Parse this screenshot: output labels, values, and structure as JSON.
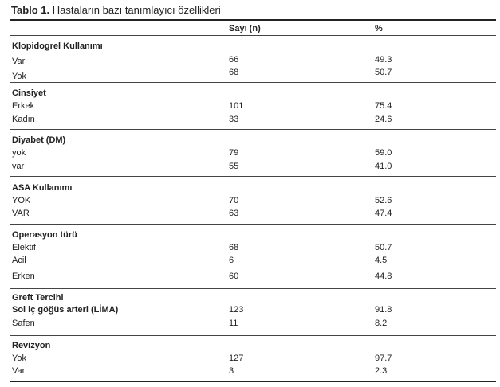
{
  "caption": {
    "label": "Tablo 1.",
    "text": " Hastaların bazı tanımlayıcı özellikleri"
  },
  "table": {
    "header": {
      "col1": "Sayı (n)",
      "col2": "%"
    },
    "groups": [
      {
        "title": "Klopidogrel Kullanımı",
        "rows": [
          {
            "label": "Var",
            "n": "66",
            "pct": "49.3"
          },
          {
            "label": "Yok",
            "n": "68",
            "pct": "50.7"
          }
        ]
      },
      {
        "title": "Cinsiyet",
        "rows": [
          {
            "label": "Erkek",
            "n": "101",
            "pct": "75.4"
          },
          {
            "label": "Kadın",
            "n": "33",
            "pct": "24.6"
          }
        ]
      },
      {
        "title": "Diyabet (DM)",
        "rows": [
          {
            "label": "yok",
            "n": "79",
            "pct": "59.0"
          },
          {
            "label": "var",
            "n": "55",
            "pct": "41.0"
          }
        ]
      },
      {
        "title": "ASA Kullanımı",
        "rows": [
          {
            "label": "YOK",
            "n": "70",
            "pct": "52.6"
          },
          {
            "label": "VAR",
            "n": "63",
            "pct": "47.4"
          }
        ]
      },
      {
        "title": "Operasyon türü",
        "rows": [
          {
            "label": "Elektif",
            "n": "68",
            "pct": "50.7"
          },
          {
            "label": "Acil",
            "n": "6",
            "pct": "4.5"
          },
          {
            "label": "Erken",
            "n": "60",
            "pct": "44.8"
          }
        ]
      },
      {
        "title": "Greft Tercihi",
        "rows": [
          {
            "label": "Sol iç göğüs arteri (LİMA)",
            "n": "123",
            "pct": "91.8"
          },
          {
            "label": "Safen",
            "n": "11",
            "pct": "8.2"
          }
        ]
      },
      {
        "title": "Revizyon",
        "rows": [
          {
            "label": "Yok",
            "n": "127",
            "pct": "97.7"
          },
          {
            "label": "Var",
            "n": "3",
            "pct": "2.3"
          }
        ]
      }
    ]
  }
}
